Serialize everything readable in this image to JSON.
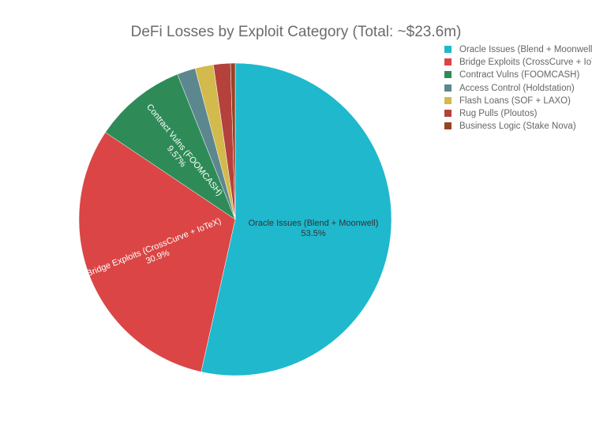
{
  "chart_data": {
    "type": "pie",
    "title": "DeFi Losses by Exploit Category (Total: ~$23.6m)",
    "categories": [
      "Oracle Issues (Blend + Moonwell)",
      "Bridge Exploits (CrossCurve + IoTeX)",
      "Contract Vulns (FOOMCASH)",
      "Access Control (Holdstation)",
      "Flash Loans (SOF + LAXO)",
      "Rug Pulls (Ploutos)",
      "Business Logic (Stake Nova)"
    ],
    "values": [
      53.5,
      30.9,
      9.57,
      1.9,
      1.9,
      1.75,
      0.48
    ],
    "slice_labels": [
      {
        "name": "Oracle Issues (Blend + Moonwell)",
        "pct": "53.5%"
      },
      {
        "name": "Bridge Exploits (CrossCurve + IoTeX)",
        "pct": "30.9%"
      },
      {
        "name": "Contract Vulns (FOOMCASH)",
        "pct": "9.57%"
      }
    ],
    "colors": [
      "#1fb8cd",
      "#db4545",
      "#2e8b57",
      "#5d878f",
      "#d2ba4c",
      "#b4413c",
      "#964325"
    ],
    "legend_position": "right",
    "direction": "clockwise",
    "start": "top"
  }
}
